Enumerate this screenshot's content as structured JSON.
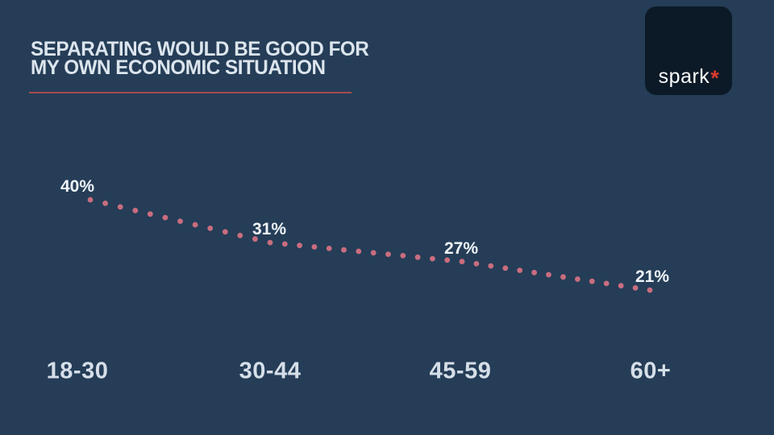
{
  "slide": {
    "title_lines": [
      "SEPARATING WOULD BE GOOD FOR",
      "MY OWN ECONOMIC SITUATION"
    ],
    "logo": {
      "text": "spark",
      "asterisk": "*"
    }
  },
  "colors": {
    "background": "#253d57",
    "logo_card": "#0c1a28",
    "logo_asterisk": "#dd3a2c",
    "title_text": "#dce5ed",
    "title_rule": "#a64a4e",
    "dot": "#c96d7f",
    "point_label": "#f0f5f9",
    "category_label": "#d6dfe8"
  },
  "chart_data": {
    "type": "line",
    "line_style": "dotted",
    "title": "SEPARATING WOULD BE GOOD FOR MY OWN ECONOMIC SITUATION",
    "categories": [
      "18-30",
      "30-44",
      "45-59",
      "60+"
    ],
    "values": [
      40,
      31,
      27,
      21
    ],
    "point_labels": [
      "40%",
      "31%",
      "27%",
      "21%"
    ],
    "xlabel": "",
    "ylabel": "",
    "ylim": [
      0,
      100
    ],
    "grid": false,
    "legend": false,
    "axes_visible": false
  }
}
